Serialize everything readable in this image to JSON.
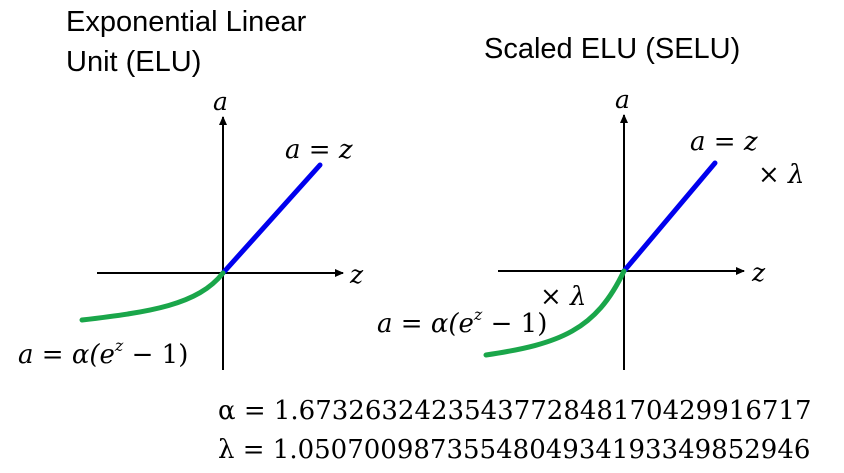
{
  "elu": {
    "title_line1": "Exponential Linear",
    "title_line2": "Unit (ELU)",
    "y_axis_label": "a",
    "x_axis_label": "z",
    "positive_label": "a = z",
    "negative_label": "a = α(e",
    "exponent": "z",
    "negative_label_tail": " − 1)"
  },
  "selu": {
    "title": "Scaled ELU (SELU)",
    "y_axis_label": "a",
    "x_axis_label": "z",
    "positive_label": "a = z",
    "positive_scale": "× λ",
    "negative_scale": "× λ",
    "negative_label": "a = α(e",
    "exponent": "z",
    "negative_label_tail": " − 1)"
  },
  "constants": {
    "alpha": "α = 1.6732632423543772848170429916717",
    "lambda": "λ = 1.0507009873554804934193349852946"
  },
  "colors": {
    "positive_branch": "#0000ee",
    "negative_branch": "#1aa64a",
    "axes": "#000000"
  }
}
